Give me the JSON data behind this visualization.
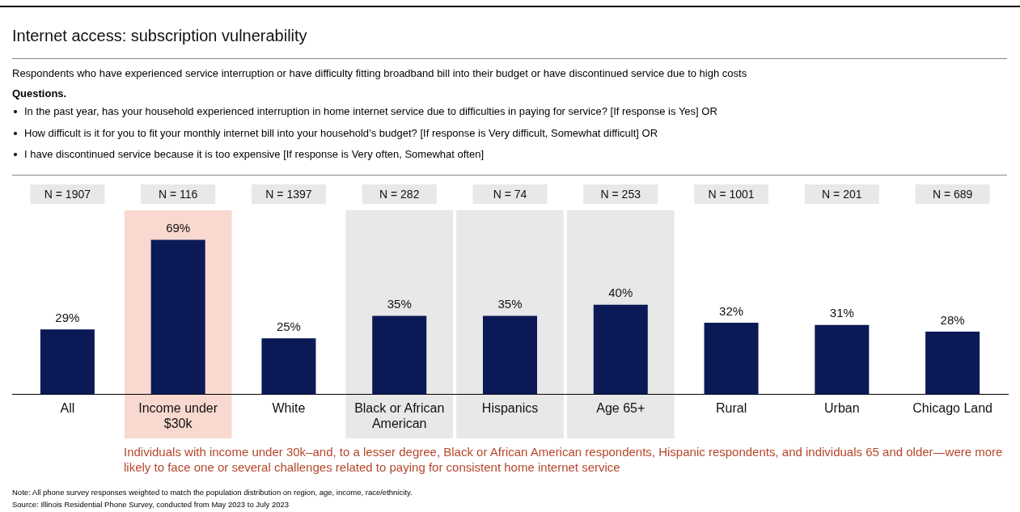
{
  "chart_data": {
    "type": "bar",
    "title": "Internet access: subscription vulnerability",
    "subtitle": "Respondents who have experienced service interruption or have difficulty fitting broadband bill into their budget or have discontinued service due to high costs",
    "categories": [
      "All",
      "Income under $30k",
      "White",
      "Black or African American",
      "Hispanics",
      "Age 65+",
      "Rural",
      "Urban",
      "Chicago Land"
    ],
    "values": [
      29,
      69,
      25,
      35,
      35,
      40,
      32,
      31,
      28
    ],
    "value_labels": [
      "29%",
      "69%",
      "25%",
      "35%",
      "35%",
      "40%",
      "32%",
      "31%",
      "28%"
    ],
    "color": "#0b1a56",
    "bands": [
      {
        "axis": "x",
        "from": "Income under $30k",
        "to": "Income under $30k",
        "color": "#f9d9cf"
      },
      {
        "axis": "x",
        "from": "Black or African American",
        "to": "Black or African American",
        "color": "#e8e8e8"
      },
      {
        "axis": "x",
        "from": "Hispanics",
        "to": "Hispanics",
        "color": "#e8e8e8"
      },
      {
        "axis": "x",
        "from": "Age 65+",
        "to": "Age 65+",
        "color": "#e8e8e8"
      }
    ],
    "annotations": [
      "Questions.",
      "In the past year, has your household experienced interruption in home internet service due to difficulties in paying for service? [If response is Yes] OR",
      "How difficult is it for you to fit your monthly internet bill into your household’s budget? [If response is Very difficult, Somewhat difficult] OR",
      "I have discontinued service because it is too expensive [If response is Very often, Somewhat often]",
      "N = 1907",
      "N = 116",
      "N = 1397",
      "N = 282",
      "N = 74",
      "N = 253",
      "N = 1001",
      "N = 201",
      "N = 689",
      "Individuals with income under 30k–and, to a lesser degree, Black or African American respondents, Hispanic respondents, and individuals 65 and older—were more likely to face one or several challenges related to paying for consistent home internet service",
      "Note: All phone survey responses weighted to match the population distribution on region, age, income, race/ethnicity.",
      "Source: Illinois Residential Phone Survey, conducted from May 2023 to July 2023"
    ],
    "grid": false,
    "legend": false
  }
}
